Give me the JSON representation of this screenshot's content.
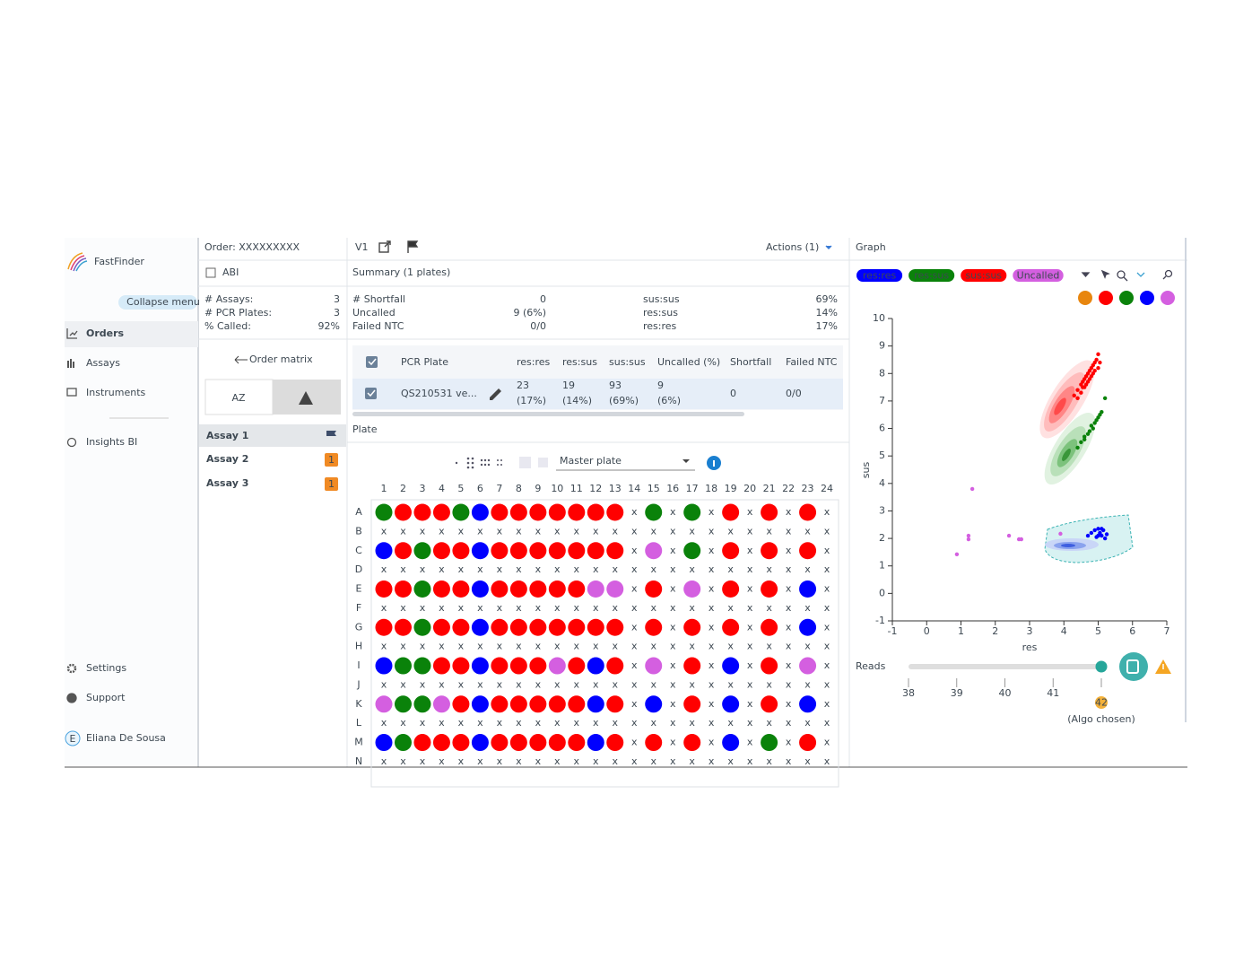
{
  "sidebar": {
    "brand": "FastFinder",
    "collapse": "Collapse menu",
    "nav": [
      "Orders",
      "Assays",
      "Instruments",
      "Insights BI"
    ],
    "bottom_nav": [
      "Settings",
      "Support"
    ],
    "user": {
      "initial": "E",
      "name": "Eliana De Sousa"
    }
  },
  "order": {
    "title": "Order: XXXXXXXXX",
    "instrument": "ABI",
    "stats": [
      {
        "label": "# Assays:",
        "value": 3
      },
      {
        "label": "# PCR Plates:",
        "value": 3
      },
      {
        "label": "% Called:",
        "value": "92%"
      }
    ],
    "matrix_link": "Order matrix",
    "sort_label": "AZ",
    "assays": [
      {
        "name": "Assay 1",
        "flagged": true
      },
      {
        "name": "Assay 2",
        "badge": "1"
      },
      {
        "name": "Assay 3",
        "badge": "1"
      }
    ]
  },
  "version": {
    "label": "V1",
    "actions": "Actions (1)"
  },
  "summary": {
    "title": "Summary (1 plates)",
    "left": [
      {
        "label": "# Shortfall",
        "value": 0
      },
      {
        "label": "Uncalled",
        "value": "9 (6%)",
        "alert": true
      },
      {
        "label": "Failed NTC",
        "value": "0/0"
      }
    ],
    "right": [
      {
        "label": "sus:sus",
        "value": "69%"
      },
      {
        "label": "res:sus",
        "value": "14%"
      },
      {
        "label": "res:res",
        "value": "17%"
      }
    ]
  },
  "table": {
    "columns": [
      "PCR Plate",
      "res:res",
      "res:sus",
      "sus:sus",
      "Uncalled (%)",
      "Shortfall",
      "Failed NTC"
    ],
    "alert_column": 4,
    "rows": [
      [
        "QS210531 ve...",
        [
          23,
          "(17%)"
        ],
        [
          19,
          "(14%)"
        ],
        [
          93,
          "(69%)"
        ],
        [
          9,
          "(6%)"
        ],
        0,
        "0/0"
      ]
    ]
  },
  "plate": {
    "title": "Plate",
    "view": "Master plate",
    "columns": [
      1,
      2,
      3,
      4,
      5,
      6,
      7,
      8,
      9,
      10,
      11,
      12,
      13,
      14,
      15,
      16,
      17,
      18,
      19,
      20,
      21,
      22,
      23,
      24
    ],
    "rows": [
      "A",
      "B",
      "C",
      "D",
      "E",
      "F",
      "G",
      "H",
      "I",
      "J",
      "K",
      "L",
      "M",
      "N"
    ],
    "wells": [
      "GRRRGBRRRRRRRxGxGxRxRxRx",
      "xxxxxxxxxxxxxxxxxxxxxxxx",
      "BRGRRBRRRRRRRxPxGxRxRxRx",
      "xxxxxxxxxxxxxxxxxxxxxxxx",
      "RRGRRBRRRRRPPxRxPxRxRxBx",
      "xxxxxxxxxxxxxxxxxxxxxxxx",
      "RRGRRBRRRRRRRxRxRxRxRxBx",
      "xxxxxxxxxxxxxxxxxxxxxxxx",
      "BGGRRBRRRPRBRxPxRxBxRxPx",
      "xxxxxxxxxxxxxxxxxxxxxxxx",
      "PGGPRBRRRRRBRxBxRxBxRxBx",
      "xxxxxxxxxxxxxxxxxxxxxxxx",
      "BGRRRBRRRRRBRxRxRxBxGxRx",
      "xxxxxxxxxxxxxxxxxxxxxxxx"
    ],
    "colors": {
      "R": "#ff0000",
      "G": "#0a820a",
      "B": "#0000ff",
      "P": "#d45fe0"
    }
  },
  "graph": {
    "title": "Graph",
    "palette": [
      "#e8860f",
      "#ff0000",
      "#0a820a",
      "#0000ff",
      "#d45fe0"
    ],
    "reads": {
      "label": "Reads",
      "ticks": [
        38,
        39,
        40,
        41,
        42
      ],
      "value": 42,
      "note": "(Algo chosen)"
    }
  },
  "chart_data": {
    "type": "scatter",
    "xlabel": "res",
    "ylabel": "sus",
    "xlim": [
      -1,
      7
    ],
    "ylim": [
      -1,
      10
    ],
    "xticks": [
      -1,
      0,
      1,
      2,
      3,
      4,
      5,
      6,
      7
    ],
    "yticks": [
      -1,
      0,
      1,
      2,
      3,
      4,
      5,
      6,
      7,
      8,
      9,
      10
    ],
    "series": [
      {
        "name": "res:res",
        "color": "#0000ff",
        "x": [
          4.8,
          4.9,
          5.0,
          5.05,
          5.1,
          5.15,
          5.2,
          5.0,
          5.1,
          4.95,
          5.25,
          4.7
        ],
        "values": [
          2.2,
          2.3,
          2.35,
          2.2,
          2.1,
          2.3,
          2.0,
          2.1,
          2.35,
          2.05,
          2.15,
          2.1
        ]
      },
      {
        "name": "res:sus",
        "color": "#0a820a",
        "x": [
          4.4,
          4.5,
          4.6,
          4.7,
          4.75,
          4.85,
          4.9,
          4.95,
          5.0,
          5.05,
          5.1,
          4.8,
          5.2,
          4.6
        ],
        "values": [
          5.3,
          5.5,
          5.6,
          5.8,
          5.9,
          6.0,
          6.2,
          6.3,
          6.4,
          6.5,
          6.6,
          6.1,
          7.1,
          5.7
        ]
      },
      {
        "name": "sus:sus",
        "color": "#ff0000",
        "x": [
          4.3,
          4.4,
          4.5,
          4.55,
          4.6,
          4.65,
          4.7,
          4.75,
          4.8,
          4.85,
          4.9,
          4.95,
          5.0,
          4.6,
          4.7,
          4.8,
          4.5,
          4.9,
          5.05,
          4.4,
          4.75,
          4.85,
          4.65,
          5.0,
          4.55
        ],
        "values": [
          7.2,
          7.4,
          7.6,
          7.7,
          7.8,
          7.9,
          8.0,
          8.1,
          8.2,
          8.3,
          8.4,
          8.5,
          8.7,
          7.5,
          7.7,
          7.9,
          7.3,
          8.1,
          8.4,
          7.1,
          7.8,
          8.0,
          7.6,
          8.2,
          7.5
        ]
      },
      {
        "name": "Uncalled",
        "color": "#d45fe0",
        "x": [
          1.33,
          1.22,
          1.22,
          0.88,
          2.4,
          2.69,
          2.76,
          3.9
        ],
        "values": [
          3.8,
          2.1,
          1.97,
          1.42,
          2.1,
          1.97,
          1.97,
          2.17
        ]
      }
    ]
  }
}
